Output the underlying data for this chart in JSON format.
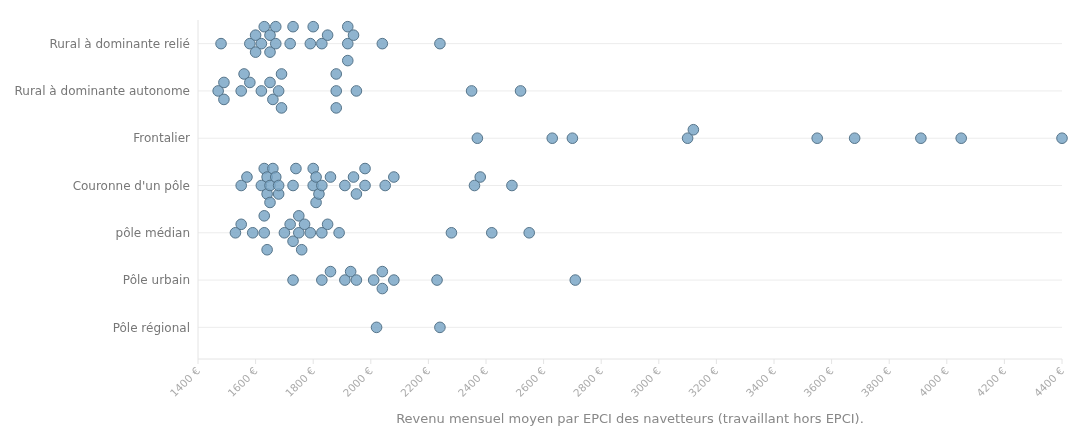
{
  "chart_data": {
    "type": "scatter",
    "orientation": "horizontal",
    "xlabel": "Revenu mensuel moyen par EPCI des navetteurs (travaillant hors EPCI).",
    "categories": [
      "Rural à dominante relié",
      "Rural à dominante autonome",
      "Frontalier",
      "Couronne d'un pôle",
      "pôle médian",
      "Pôle urbain",
      "Pôle régional"
    ],
    "series": [
      {
        "color": "#7ba7c7",
        "x": [
          "Rural à dominante relié",
          "Rural à dominante relié",
          "Rural à dominante relié",
          "Rural à dominante relié",
          "Rural à dominante relié",
          "Rural à dominante relié",
          "Rural à dominante relié",
          "Rural à dominante relié",
          "Rural à dominante relié",
          "Rural à dominante relié",
          "Rural à dominante relié",
          "Rural à dominante relié",
          "Rural à dominante relié",
          "Rural à dominante relié",
          "Rural à dominante relié",
          "Rural à dominante relié",
          "Rural à dominante relié",
          "Rural à dominante relié",
          "Rural à dominante relié",
          "Rural à dominante relié",
          "Rural à dominante relié",
          "Rural à dominante relié",
          "Rural à dominante autonome",
          "Rural à dominante autonome",
          "Rural à dominante autonome",
          "Rural à dominante autonome",
          "Rural à dominante autonome",
          "Rural à dominante autonome",
          "Rural à dominante autonome",
          "Rural à dominante autonome",
          "Rural à dominante autonome",
          "Rural à dominante autonome",
          "Rural à dominante autonome",
          "Rural à dominante autonome",
          "Rural à dominante autonome",
          "Rural à dominante autonome",
          "Rural à dominante autonome",
          "Rural à dominante autonome",
          "Rural à dominante autonome",
          "Rural à dominante autonome",
          "Frontalier",
          "Frontalier",
          "Frontalier",
          "Frontalier",
          "Frontalier",
          "Frontalier",
          "Frontalier",
          "Frontalier",
          "Frontalier",
          "Frontalier",
          "Couronne d'un pôle",
          "Couronne d'un pôle",
          "Couronne d'un pôle",
          "Couronne d'un pôle",
          "Couronne d'un pôle",
          "Couronne d'un pôle",
          "Couronne d'un pôle",
          "Couronne d'un pôle",
          "Couronne d'un pôle",
          "Couronne d'un pôle",
          "Couronne d'un pôle",
          "Couronne d'un pôle",
          "Couronne d'un pôle",
          "Couronne d'un pôle",
          "Couronne d'un pôle",
          "Couronne d'un pôle",
          "Couronne d'un pôle",
          "Couronne d'un pôle",
          "Couronne d'un pôle",
          "Couronne d'un pôle",
          "Couronne d'un pôle",
          "Couronne d'un pôle",
          "Couronne d'un pôle",
          "Couronne d'un pôle",
          "Couronne d'un pôle",
          "Couronne d'un pôle",
          "Couronne d'un pôle",
          "Couronne d'un pôle",
          "Couronne d'un pôle",
          "Couronne d'un pôle",
          "Couronne d'un pôle",
          "pôle médian",
          "pôle médian",
          "pôle médian",
          "pôle médian",
          "pôle médian",
          "pôle médian",
          "pôle médian",
          "pôle médian",
          "pôle médian",
          "pôle médian",
          "pôle médian",
          "pôle médian",
          "pôle médian",
          "pôle médian",
          "pôle médian",
          "pôle médian",
          "pôle médian",
          "pôle médian",
          "pôle médian",
          "pôle médian",
          "Pôle urbain",
          "Pôle urbain",
          "Pôle urbain",
          "Pôle urbain",
          "Pôle urbain",
          "Pôle urbain",
          "Pôle urbain",
          "Pôle urbain",
          "Pôle urbain",
          "Pôle urbain",
          "Pôle urbain",
          "Pôle urbain",
          "Pôle régional",
          "Pôle régional"
        ],
        "values": [
          1480,
          1580,
          1600,
          1620,
          1600,
          1630,
          1650,
          1650,
          1670,
          1670,
          1720,
          1730,
          1790,
          1800,
          1830,
          1850,
          1920,
          1920,
          1920,
          1940,
          2040,
          2240,
          1470,
          1490,
          1490,
          1550,
          1560,
          1580,
          1620,
          1650,
          1660,
          1680,
          1690,
          1690,
          1880,
          1880,
          1880,
          1950,
          2350,
          2520,
          2370,
          2630,
          2700,
          3100,
          3120,
          3550,
          3680,
          3910,
          4050,
          4400,
          1550,
          1570,
          1620,
          1630,
          1640,
          1640,
          1650,
          1650,
          1660,
          1670,
          1680,
          1680,
          1730,
          1740,
          1800,
          1800,
          1810,
          1810,
          1820,
          1830,
          1860,
          1910,
          1940,
          1950,
          1980,
          1980,
          2050,
          2080,
          2360,
          2380,
          2490,
          1530,
          1550,
          1590,
          1630,
          1630,
          1640,
          1700,
          1720,
          1730,
          1750,
          1750,
          1760,
          1770,
          1790,
          1830,
          1850,
          1890,
          2280,
          2420,
          2550,
          1730,
          1830,
          1860,
          1910,
          1930,
          1950,
          2010,
          2040,
          2040,
          2080,
          2230,
          2710,
          2020,
          2240
        ]
      }
    ],
    "xlim": [
      1400,
      4400
    ],
    "xticks": [
      {
        "value": 1400,
        "label": "1400 €"
      },
      {
        "value": 1600,
        "label": "1600 €"
      },
      {
        "value": 1800,
        "label": "1800 €"
      },
      {
        "value": 2000,
        "label": "2000 €"
      },
      {
        "value": 2200,
        "label": "2200 €"
      },
      {
        "value": 2400,
        "label": "2400 €"
      },
      {
        "value": 2600,
        "label": "2600 €"
      },
      {
        "value": 2800,
        "label": "2800 €"
      },
      {
        "value": 3000,
        "label": "3000 €"
      },
      {
        "value": 3200,
        "label": "3200 €"
      },
      {
        "value": 3400,
        "label": "3400 €"
      },
      {
        "value": 3600,
        "label": "3600 €"
      },
      {
        "value": 3800,
        "label": "3800 €"
      },
      {
        "value": 4000,
        "label": "4000 €"
      },
      {
        "value": 4200,
        "label": "4200 €"
      },
      {
        "value": 4400,
        "label": "4400 €"
      }
    ],
    "grid": "y",
    "marker": "circle"
  }
}
